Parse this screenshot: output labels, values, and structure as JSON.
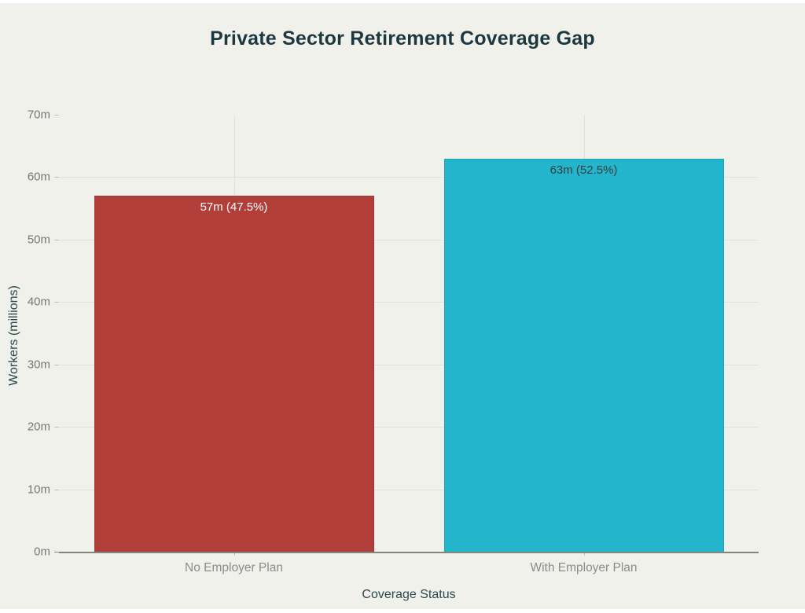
{
  "chart_data": {
    "type": "bar",
    "title": "Private Sector Retirement Coverage Gap",
    "xlabel": "Coverage Status",
    "ylabel": "Workers (millions)",
    "categories": [
      "No Employer Plan",
      "With Employer Plan"
    ],
    "values": [
      57,
      63
    ],
    "bar_labels": [
      "57m (47.5%)",
      "63m (52.5%)"
    ],
    "bar_colors": [
      "#b23e3a",
      "#22b5cc"
    ],
    "bar_label_colors": [
      "#ffffff",
      "#3c3e3d"
    ],
    "ylim": [
      0,
      70
    ],
    "yticks": [
      0,
      10,
      20,
      30,
      40,
      50,
      60,
      70
    ],
    "ytick_labels": [
      "0m",
      "10m",
      "20m",
      "30m",
      "40m",
      "50m",
      "60m",
      "70m"
    ],
    "grid": "horizontal lines at 10m intervals plus vertical line at each category center",
    "legend_position": "none"
  },
  "style": {
    "canvas_background": "#f0f1ea",
    "page_border": "#ffffff",
    "title_color": "#1d3741",
    "axis_title_color": "#2c4850",
    "tick_label_color": "#74787a",
    "category_label_color": "#878c8d",
    "gridline_color": "#e0e1d9",
    "tick_mark_color": "#c2c3bc",
    "axis_line_color": "#85857f"
  }
}
